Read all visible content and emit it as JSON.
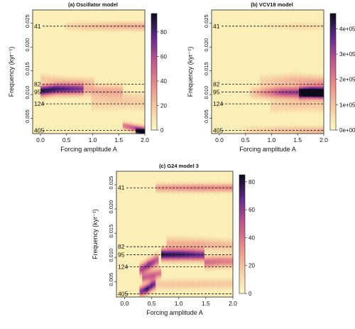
{
  "chart_data": [
    {
      "type": "heatmap",
      "panel": "a",
      "title": "(a) Oscillator model",
      "xlabel": "Forcing amplitude A",
      "ylabel": "Frequency (kyr⁻¹)",
      "xlim": [
        -0.15,
        2.0
      ],
      "ylim": [
        0.0018,
        0.0278
      ],
      "xticks": [
        "0.0",
        "0.5",
        "1.0",
        "1.5",
        "2.0"
      ],
      "yticks": [
        "0.005",
        "0.010",
        "0.015",
        "0.020",
        "0.025"
      ],
      "period_lines": [
        {
          "label": "41",
          "freq": 0.02439
        },
        {
          "label": "82",
          "freq": 0.0122
        },
        {
          "label": "95",
          "freq": 0.01053
        },
        {
          "label": "124",
          "freq": 0.00806
        },
        {
          "label": "405",
          "freq": 0.00247
        }
      ],
      "colorbar": {
        "min": 0,
        "max": 95,
        "ticks": [
          "0",
          "20",
          "40",
          "60",
          "80"
        ]
      },
      "ridges": [
        {
          "x": [
            0.0,
            0.3,
            0.8
          ],
          "freq": [
            0.0108,
            0.0112,
            0.0112
          ],
          "intensity": [
            85,
            80,
            65
          ],
          "width": 0.0008
        },
        {
          "x": [
            0.85,
            1.2,
            1.55
          ],
          "freq": [
            0.0112,
            0.0108,
            0.0108
          ],
          "intensity": [
            25,
            22,
            20
          ],
          "width": 0.0009
        },
        {
          "x": [
            0.5,
            1.0,
            2.0
          ],
          "freq": [
            0.0244,
            0.0244,
            0.0244
          ],
          "intensity": [
            10,
            18,
            25
          ],
          "width": 0.0006
        },
        {
          "x": [
            0.0,
            0.5,
            1.0
          ],
          "freq": [
            0.0135,
            0.013,
            0.0128
          ],
          "intensity": [
            14,
            12,
            12
          ],
          "width": 0.0006
        },
        {
          "x": [
            1.0,
            1.6,
            2.0
          ],
          "freq": [
            0.0085,
            0.0088,
            0.0085
          ],
          "intensity": [
            12,
            14,
            12
          ],
          "width": 0.0012
        },
        {
          "x": [
            1.6,
            1.8,
            2.0
          ],
          "freq": [
            0.0035,
            0.003,
            0.0026
          ],
          "intensity": [
            40,
            55,
            60
          ],
          "width": 0.0005
        },
        {
          "x": [
            1.85,
            1.93,
            2.0
          ],
          "freq": [
            0.0022,
            0.0021,
            0.002
          ],
          "intensity": [
            70,
            85,
            90
          ],
          "width": 0.0004
        }
      ]
    },
    {
      "type": "heatmap",
      "panel": "b",
      "title": "(b) VCV18 model",
      "xlabel": "Forcing amplitude A",
      "ylabel": "Frequency (kyr⁻¹)",
      "xlim": [
        -0.15,
        2.0
      ],
      "ylim": [
        0.0018,
        0.0278
      ],
      "xticks": [
        "0.0",
        "0.5",
        "1.0",
        "1.5",
        "2.0"
      ],
      "yticks": [
        "0.005",
        "0.010",
        "0.015",
        "0.020",
        "0.025"
      ],
      "period_lines": [
        {
          "label": "41",
          "freq": 0.02439
        },
        {
          "label": "82",
          "freq": 0.0122
        },
        {
          "label": "95",
          "freq": 0.01053
        },
        {
          "label": "124",
          "freq": 0.00806
        },
        {
          "label": "405",
          "freq": 0.00247
        }
      ],
      "colorbar": {
        "min": 0,
        "max": 460000,
        "ticks": [
          "0e+00",
          "1e+05",
          "2e+05",
          "3e+05",
          "4e+05"
        ]
      },
      "ridges": [
        {
          "x": [
            0.6,
            1.2,
            2.0
          ],
          "freq": [
            0.0104,
            0.0105,
            0.0104
          ],
          "intensity": [
            60000,
            280000,
            320000
          ],
          "width": 0.0008
        },
        {
          "x": [
            1.55,
            1.75,
            2.0
          ],
          "freq": [
            0.0104,
            0.0105,
            0.0104
          ],
          "intensity": [
            300000,
            360000,
            320000
          ],
          "width": 0.0007
        },
        {
          "x": [
            0.8,
            1.4,
            2.0
          ],
          "freq": [
            0.0128,
            0.013,
            0.0125
          ],
          "intensity": [
            50000,
            100000,
            140000
          ],
          "width": 0.0009
        },
        {
          "x": [
            0.5,
            1.2,
            2.0
          ],
          "freq": [
            0.0024,
            0.0025,
            0.0024
          ],
          "intensity": [
            40000,
            80000,
            110000
          ],
          "width": 0.0006
        },
        {
          "x": [
            0.9,
            1.5,
            2.0
          ],
          "freq": [
            0.0244,
            0.0244,
            0.0244
          ],
          "intensity": [
            20000,
            40000,
            30000
          ],
          "width": 0.0006
        },
        {
          "x": [
            1.0,
            1.5,
            2.0
          ],
          "freq": [
            0.0076,
            0.008,
            0.0078
          ],
          "intensity": [
            50000,
            70000,
            60000
          ],
          "width": 0.001
        }
      ]
    },
    {
      "type": "heatmap",
      "panel": "c",
      "title": "(c) G24 model 3",
      "xlabel": "Forcing amplitude A",
      "ylabel": "Frequency (kyr⁻¹)",
      "xlim": [
        -0.15,
        2.0
      ],
      "ylim": [
        0.0018,
        0.0278
      ],
      "xticks": [
        "0.0",
        "0.5",
        "1.0",
        "1.5",
        "2.0"
      ],
      "yticks": [
        "0.005",
        "0.010",
        "0.015",
        "0.020",
        "0.025"
      ],
      "period_lines": [
        {
          "label": "41",
          "freq": 0.02439
        },
        {
          "label": "82",
          "freq": 0.0122
        },
        {
          "label": "95",
          "freq": 0.01053
        },
        {
          "label": "124",
          "freq": 0.00806
        },
        {
          "label": "405",
          "freq": 0.00247
        }
      ],
      "colorbar": {
        "min": 0,
        "max": 85,
        "ticks": [
          "0",
          "20",
          "40",
          "60",
          "80"
        ]
      },
      "ridges": [
        {
          "x": [
            0.7,
            1.1,
            1.45
          ],
          "freq": [
            0.0106,
            0.0106,
            0.0105
          ],
          "intensity": [
            75,
            70,
            60
          ],
          "width": 0.0008
        },
        {
          "x": [
            1.5,
            1.75,
            2.0
          ],
          "freq": [
            0.009,
            0.0092,
            0.0092
          ],
          "intensity": [
            40,
            35,
            32
          ],
          "width": 0.0008
        },
        {
          "x": [
            0.6,
            1.3,
            2.0
          ],
          "freq": [
            0.0244,
            0.0244,
            0.0244
          ],
          "intensity": [
            25,
            30,
            30
          ],
          "width": 0.0006
        },
        {
          "x": [
            0.3,
            0.42,
            0.55
          ],
          "freq": [
            0.003,
            0.0035,
            0.0045
          ],
          "intensity": [
            55,
            75,
            45
          ],
          "width": 0.0007
        },
        {
          "x": [
            0.3,
            0.45,
            0.6
          ],
          "freq": [
            0.0075,
            0.0085,
            0.0095
          ],
          "intensity": [
            50,
            60,
            45
          ],
          "width": 0.0008
        },
        {
          "x": [
            0.35,
            0.5,
            0.65
          ],
          "freq": [
            0.0058,
            0.0062,
            0.0068
          ],
          "intensity": [
            40,
            45,
            35
          ],
          "width": 0.0007
        },
        {
          "x": [
            0.8,
            1.4,
            2.0
          ],
          "freq": [
            0.013,
            0.0128,
            0.0125
          ],
          "intensity": [
            18,
            20,
            16
          ],
          "width": 0.0008
        },
        {
          "x": [
            0.5,
            1.2,
            2.0
          ],
          "freq": [
            0.0044,
            0.0045,
            0.0046
          ],
          "intensity": [
            12,
            14,
            12
          ],
          "width": 0.0007
        }
      ]
    }
  ]
}
